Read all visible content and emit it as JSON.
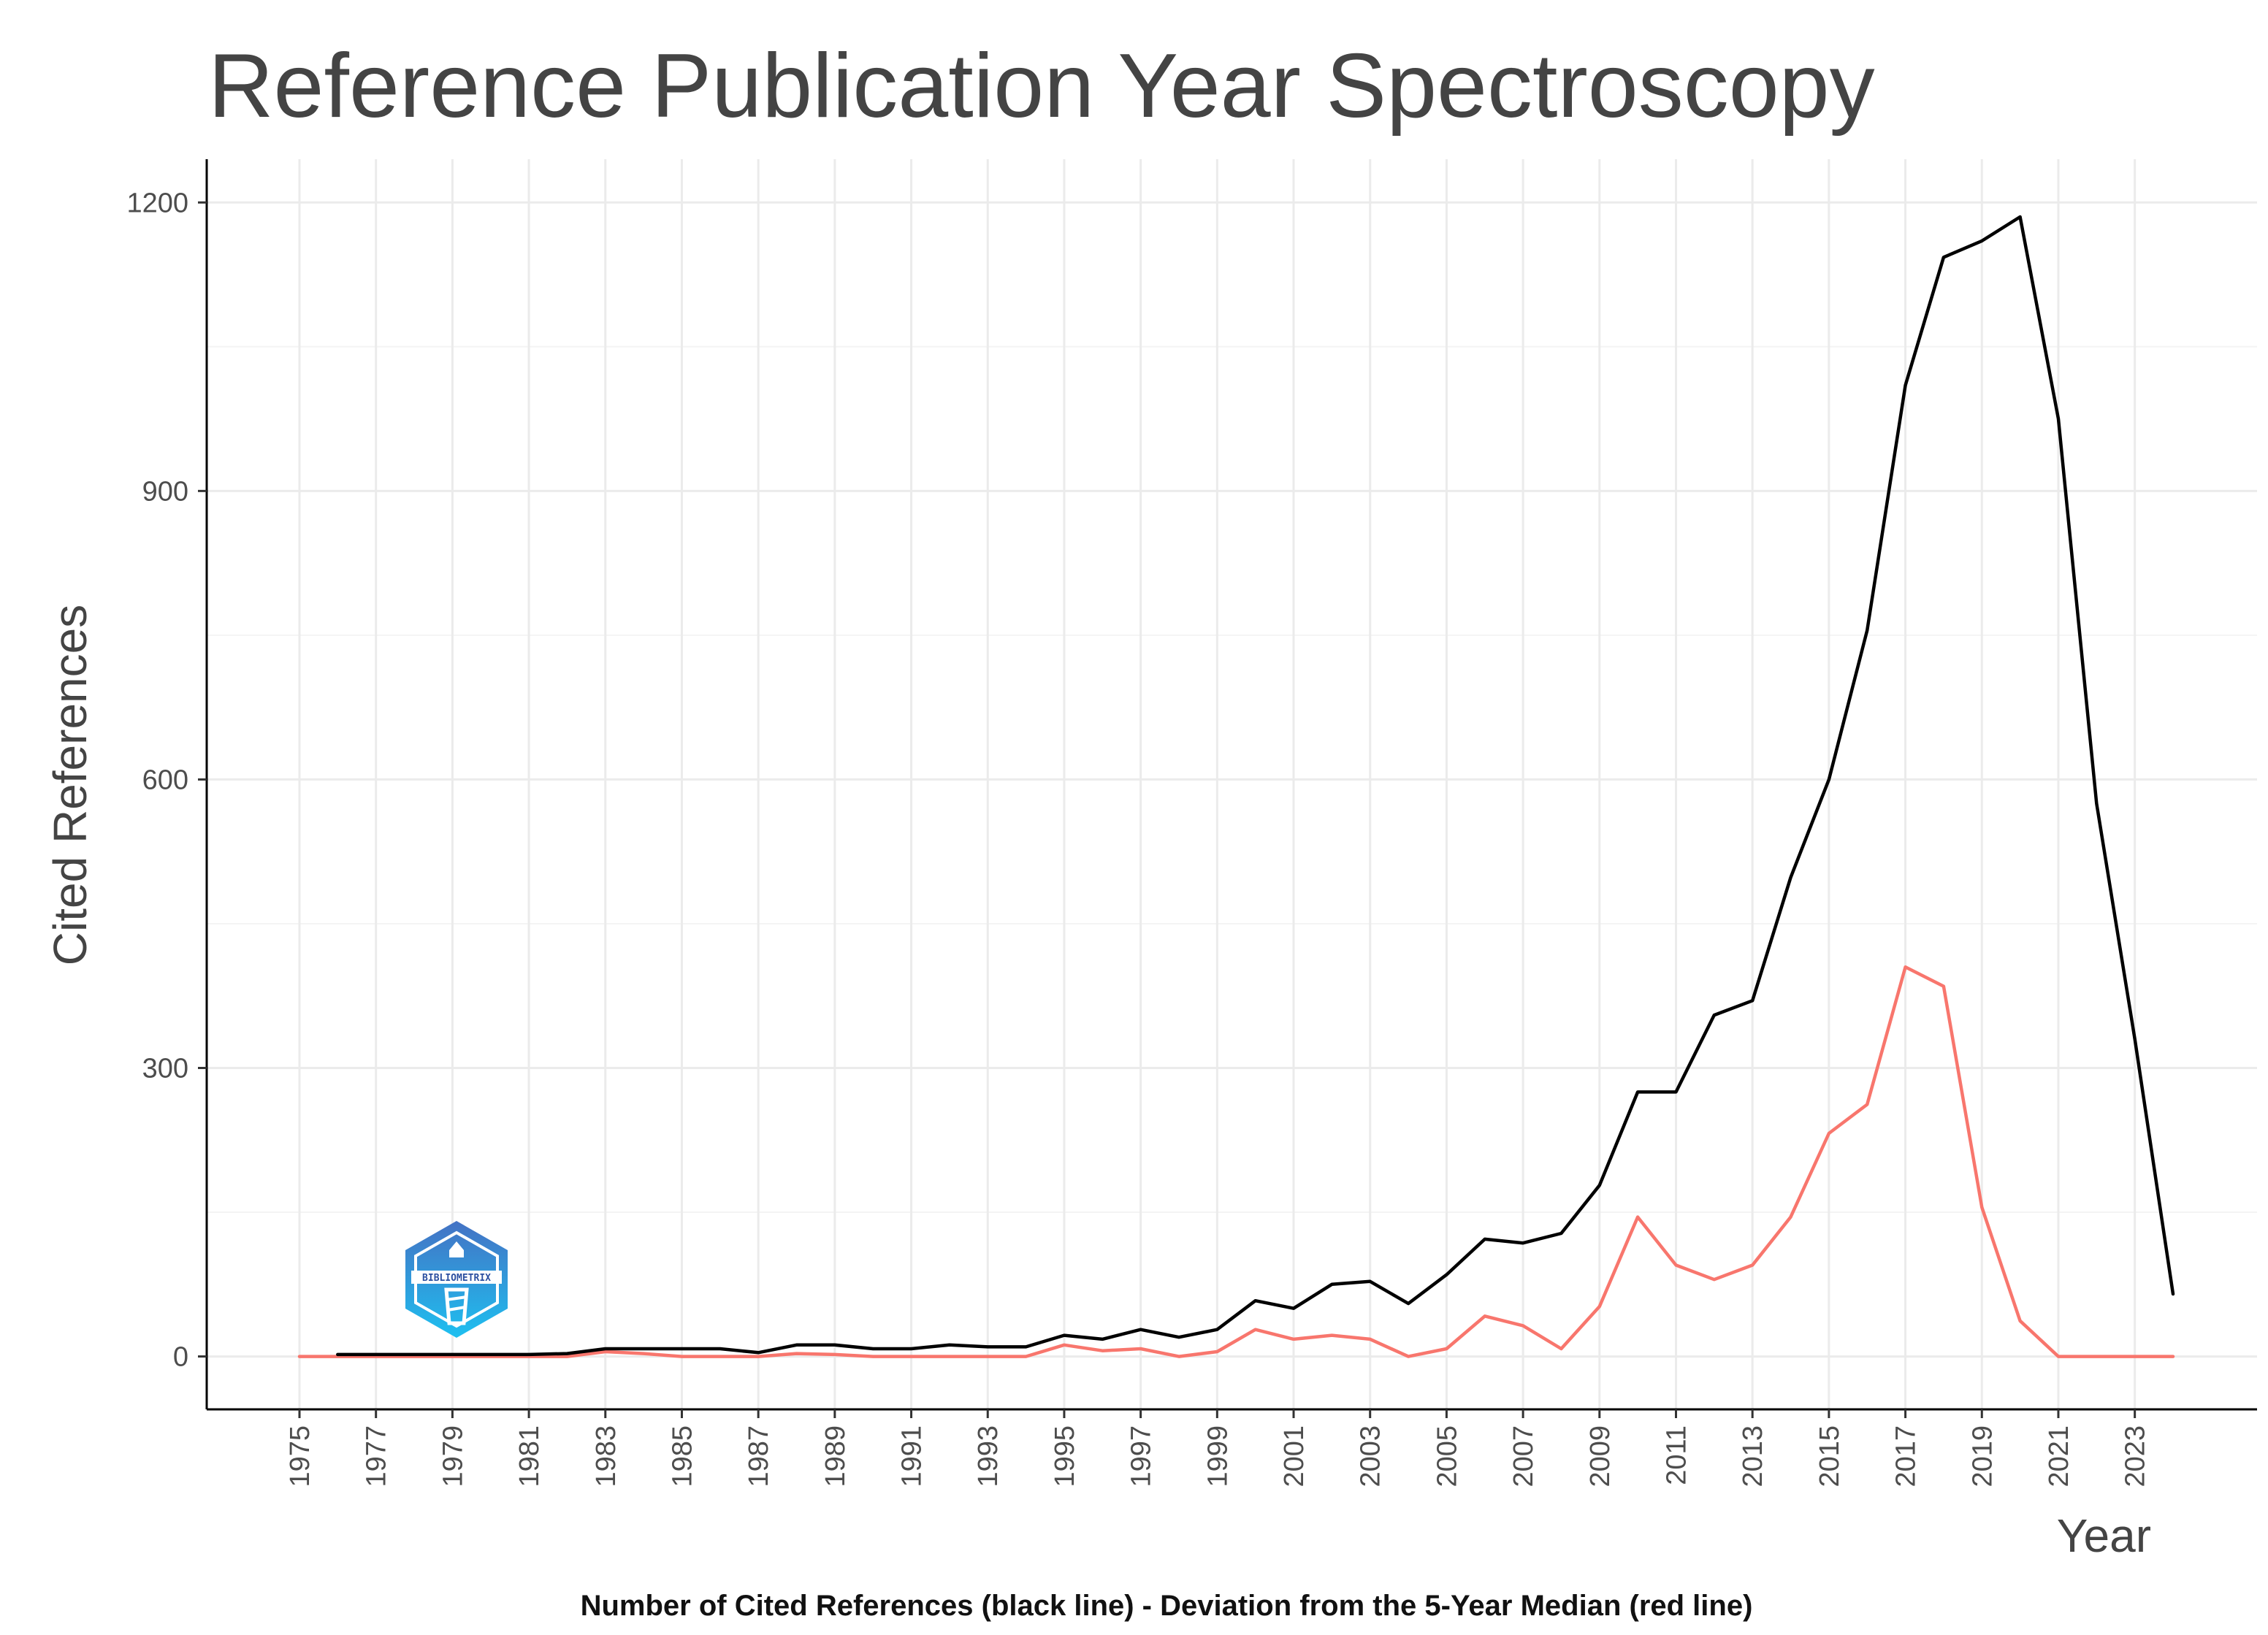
{
  "chart_data": {
    "type": "line",
    "title": "Reference Publication Year Spectroscopy",
    "xlabel": "Year",
    "ylabel": "Cited References",
    "caption": "Number of Cited References (black line) - Deviation from the 5-Year Median (red line)",
    "xlim": [
      1975,
      2024
    ],
    "ylim": [
      -55,
      1245
    ],
    "x_ticks": [
      1975,
      1977,
      1979,
      1981,
      1983,
      1985,
      1987,
      1989,
      1991,
      1993,
      1995,
      1997,
      1999,
      2001,
      2003,
      2005,
      2007,
      2009,
      2011,
      2013,
      2015,
      2017,
      2019,
      2021,
      2023
    ],
    "y_ticks": [
      0,
      300,
      600,
      900,
      1200
    ],
    "grid": true,
    "series": [
      {
        "name": "Number of Cited References",
        "color": "#000000",
        "x": [
          1976,
          1977,
          1978,
          1979,
          1980,
          1981,
          1982,
          1983,
          1984,
          1985,
          1986,
          1987,
          1988,
          1989,
          1990,
          1991,
          1992,
          1993,
          1994,
          1995,
          1996,
          1997,
          1998,
          1999,
          2000,
          2001,
          2002,
          2003,
          2004,
          2005,
          2006,
          2007,
          2008,
          2009,
          2010,
          2011,
          2012,
          2013,
          2014,
          2015,
          2016,
          2017,
          2018,
          2019,
          2020,
          2021,
          2022,
          2023,
          2024
        ],
        "values": [
          2,
          2,
          2,
          2,
          2,
          2,
          3,
          8,
          8,
          8,
          8,
          4,
          12,
          12,
          8,
          8,
          12,
          10,
          10,
          22,
          18,
          28,
          20,
          28,
          58,
          50,
          75,
          78,
          55,
          85,
          122,
          118,
          128,
          178,
          275,
          275,
          355,
          370,
          498,
          600,
          755,
          1010,
          1143,
          1160,
          1185,
          975,
          575,
          330,
          65
        ]
      },
      {
        "name": "Deviation from the 5-Year Median",
        "color": "#f8766d",
        "x": [
          1975,
          1976,
          1977,
          1978,
          1979,
          1980,
          1981,
          1982,
          1983,
          1984,
          1985,
          1986,
          1987,
          1988,
          1989,
          1990,
          1991,
          1992,
          1993,
          1994,
          1995,
          1996,
          1997,
          1998,
          1999,
          2000,
          2001,
          2002,
          2003,
          2004,
          2005,
          2006,
          2007,
          2008,
          2009,
          2010,
          2011,
          2012,
          2013,
          2014,
          2015,
          2016,
          2017,
          2018,
          2019,
          2020,
          2021,
          2022,
          2023,
          2024
        ],
        "values": [
          0,
          0,
          0,
          0,
          0,
          0,
          0,
          0,
          5,
          3,
          0,
          0,
          0,
          3,
          2,
          0,
          0,
          0,
          0,
          0,
          12,
          6,
          8,
          0,
          5,
          28,
          18,
          22,
          18,
          0,
          8,
          42,
          32,
          8,
          52,
          145,
          95,
          80,
          95,
          145,
          232,
          262,
          405,
          385,
          155,
          37,
          0,
          0,
          0,
          0
        ]
      }
    ]
  },
  "logo": {
    "text": "BIBLIOMETRIX",
    "color_top": "#4472c4",
    "color_bottom": "#1ec0f0"
  }
}
